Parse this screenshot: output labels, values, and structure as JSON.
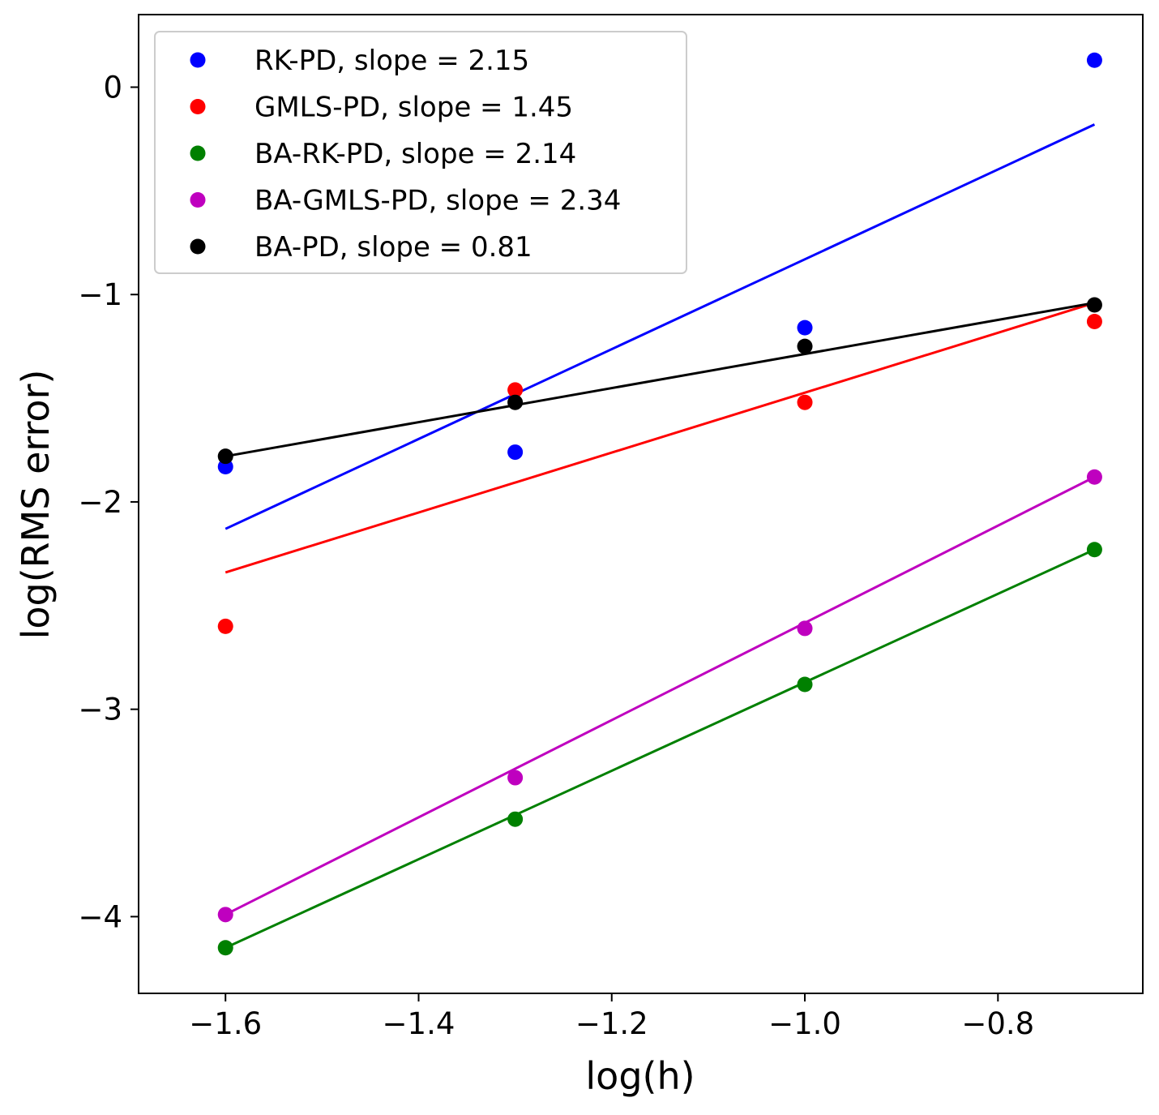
{
  "chart_data": {
    "type": "scatter",
    "title": "",
    "xlabel": "log(h)",
    "ylabel": "log(RMS error)",
    "xlim": [
      -1.69,
      -0.65
    ],
    "ylim": [
      -4.37,
      0.35
    ],
    "xticks": [
      -1.6,
      -1.4,
      -1.2,
      -1.0,
      -0.8
    ],
    "xtick_labels": [
      "−1.6",
      "−1.4",
      "−1.2",
      "−1.0",
      "−0.8"
    ],
    "yticks": [
      0,
      -1,
      -2,
      -3,
      -4
    ],
    "ytick_labels": [
      "0",
      "−1",
      "−2",
      "−3",
      "−4"
    ],
    "grid": false,
    "legend_position": "upper-left",
    "x": [
      -1.6,
      -1.3,
      -1.0,
      -0.7
    ],
    "series": [
      {
        "name": "RK-PD, slope = 2.15",
        "color": "#0000ff",
        "points": [
          -1.83,
          -1.76,
          -1.16,
          0.13
        ],
        "fit_line": [
          -2.13,
          -0.18
        ]
      },
      {
        "name": "GMLS-PD, slope = 1.45",
        "color": "#ff0000",
        "points": [
          -2.6,
          -1.46,
          -1.52,
          -1.13
        ],
        "fit_line": [
          -2.34,
          -1.04
        ]
      },
      {
        "name": "BA-RK-PD, slope = 2.14",
        "color": "#008000",
        "points": [
          -4.15,
          -3.53,
          -2.88,
          -2.23
        ],
        "fit_line": [
          -4.15,
          -2.23
        ]
      },
      {
        "name": "BA-GMLS-PD, slope = 2.34",
        "color": "#bf00bf",
        "points": [
          -3.99,
          -3.33,
          -2.61,
          -1.88
        ],
        "fit_line": [
          -3.99,
          -1.88
        ]
      },
      {
        "name": "BA-PD, slope = 0.81",
        "color": "#000000",
        "points": [
          -1.78,
          -1.52,
          -1.25,
          -1.05
        ],
        "fit_line": [
          -1.78,
          -1.04
        ]
      }
    ]
  }
}
